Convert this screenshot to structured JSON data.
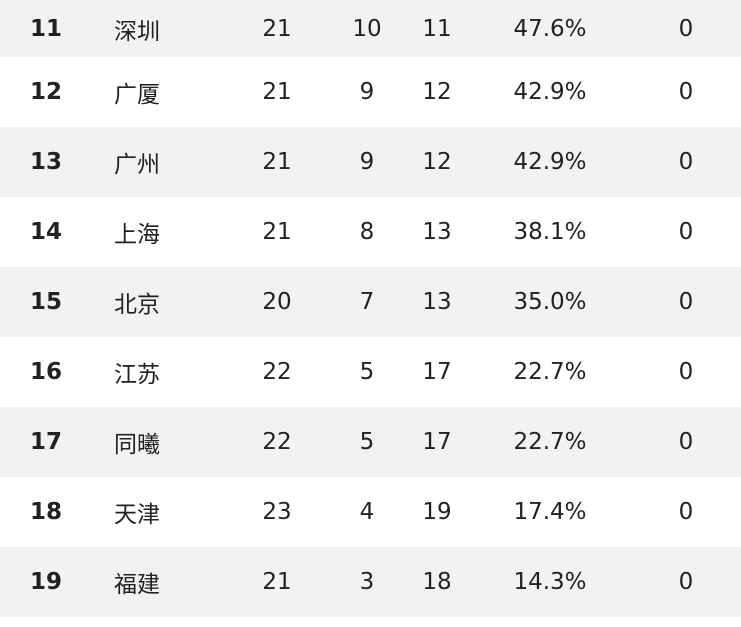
{
  "standings": {
    "rows": [
      {
        "rank": "11",
        "team": "深圳",
        "games": "21",
        "wins": "10",
        "losses": "11",
        "pct": "47.6%",
        "gb": "0"
      },
      {
        "rank": "12",
        "team": "广厦",
        "games": "21",
        "wins": "9",
        "losses": "12",
        "pct": "42.9%",
        "gb": "0"
      },
      {
        "rank": "13",
        "team": "广州",
        "games": "21",
        "wins": "9",
        "losses": "12",
        "pct": "42.9%",
        "gb": "0"
      },
      {
        "rank": "14",
        "team": "上海",
        "games": "21",
        "wins": "8",
        "losses": "13",
        "pct": "38.1%",
        "gb": "0"
      },
      {
        "rank": "15",
        "team": "北京",
        "games": "20",
        "wins": "7",
        "losses": "13",
        "pct": "35.0%",
        "gb": "0"
      },
      {
        "rank": "16",
        "team": "江苏",
        "games": "22",
        "wins": "5",
        "losses": "17",
        "pct": "22.7%",
        "gb": "0"
      },
      {
        "rank": "17",
        "team": "同曦",
        "games": "22",
        "wins": "5",
        "losses": "17",
        "pct": "22.7%",
        "gb": "0"
      },
      {
        "rank": "18",
        "team": "天津",
        "games": "23",
        "wins": "4",
        "losses": "19",
        "pct": "17.4%",
        "gb": "0"
      },
      {
        "rank": "19",
        "team": "福建",
        "games": "21",
        "wins": "3",
        "losses": "18",
        "pct": "14.3%",
        "gb": "0"
      }
    ]
  },
  "colors": {
    "row_shaded": "#f2f2f2",
    "row_plain": "#ffffff",
    "text": "#222222"
  }
}
